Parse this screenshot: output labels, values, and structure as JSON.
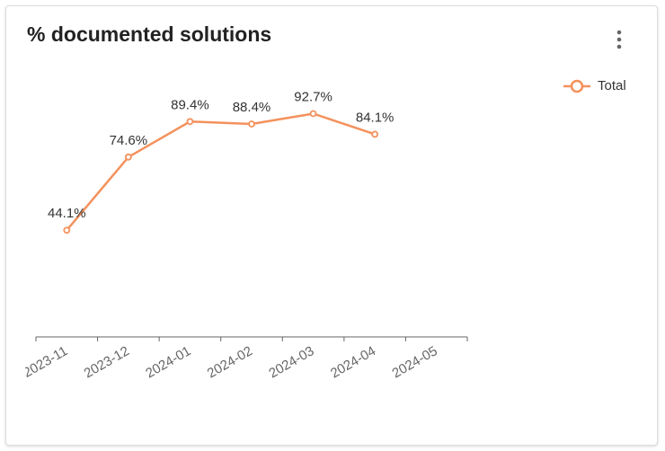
{
  "chart_data": {
    "type": "line",
    "title": "% documented solutions",
    "categories": [
      "2023-11",
      "2023-12",
      "2024-01",
      "2024-02",
      "2024-03",
      "2024-04",
      "2024-05"
    ],
    "series": [
      {
        "name": "Total",
        "color": "#f4915c",
        "values": [
          44.1,
          74.6,
          89.4,
          88.4,
          92.7,
          84.1,
          null
        ],
        "value_labels": [
          "44.1%",
          "74.6%",
          "89.4%",
          "88.4%",
          "92.7%",
          "84.1%",
          null
        ]
      }
    ],
    "ylim": [
      0,
      100
    ],
    "legend": "top-right"
  }
}
